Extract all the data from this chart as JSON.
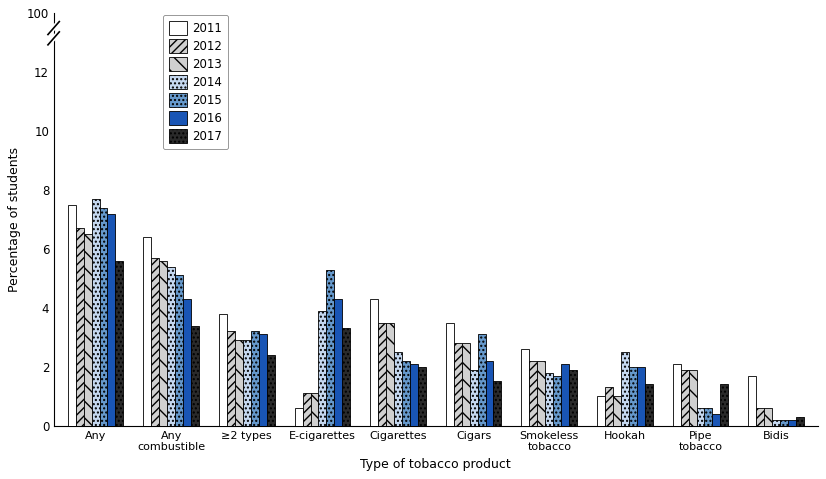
{
  "categories": [
    "Any",
    "Any\ncombustible",
    "≥2 types",
    "E-cigarettes",
    "Cigarettes",
    "Cigars",
    "Smokeless\ntobacco",
    "Hookah",
    "Pipe\ntobacco",
    "Bidis"
  ],
  "years": [
    "2011",
    "2012",
    "2013",
    "2014",
    "2015",
    "2016",
    "2017"
  ],
  "values": [
    [
      7.5,
      6.4,
      3.8,
      0.6,
      4.3,
      3.5,
      2.6,
      1.0,
      2.1,
      1.7
    ],
    [
      6.7,
      5.7,
      3.2,
      1.1,
      3.5,
      2.8,
      2.2,
      1.3,
      1.9,
      0.6
    ],
    [
      6.5,
      5.6,
      2.9,
      1.1,
      3.5,
      2.8,
      2.2,
      1.0,
      1.9,
      0.6
    ],
    [
      7.7,
      5.4,
      2.9,
      3.9,
      2.5,
      1.9,
      1.8,
      2.5,
      0.6,
      0.2
    ],
    [
      7.4,
      5.1,
      3.2,
      5.3,
      2.2,
      3.1,
      1.7,
      2.0,
      0.6,
      0.2
    ],
    [
      7.2,
      4.3,
      3.1,
      4.3,
      2.1,
      2.2,
      2.1,
      2.0,
      0.4,
      0.2
    ],
    [
      5.6,
      3.4,
      2.4,
      3.3,
      2.0,
      1.5,
      1.9,
      1.4,
      1.4,
      0.3
    ]
  ],
  "bar_colors": [
    "#ffffff",
    "#d0d0d0",
    "#d0d0d0",
    "#c5d8f0",
    "#6699cc",
    "#1955b5",
    "#2a2a2a"
  ],
  "bar_hatches": [
    "",
    "////",
    "\\\\",
    "....",
    "....",
    "",
    "...."
  ],
  "bar_edgecolors": [
    "#000000",
    "#000000",
    "#000000",
    "#000000",
    "#000000",
    "#000000",
    "#000000"
  ],
  "hatch_colors": [
    "#000000",
    "#000000",
    "#000000",
    "#5588cc",
    "#1144aa",
    "#000000",
    "#000000"
  ],
  "ylabel": "Percentage of students",
  "xlabel": "Type of tobacco product",
  "ylim": [
    0,
    14
  ],
  "yticks": [
    0,
    2,
    4,
    6,
    8,
    10,
    12,
    14
  ],
  "ytick_labels": [
    "0",
    "2",
    "4",
    "6",
    "8",
    "10",
    "12",
    "100"
  ],
  "legend_styles": [
    {
      "year": "2011",
      "color": "#ffffff",
      "hatch": "",
      "ec": "#000000"
    },
    {
      "year": "2012",
      "color": "#d0d0d0",
      "hatch": "////",
      "ec": "#000000"
    },
    {
      "year": "2013",
      "color": "#d0d0d0",
      "hatch": "\\\\",
      "ec": "#000000"
    },
    {
      "year": "2014",
      "color": "#c5d8f0",
      "hatch": "....",
      "ec": "#000000"
    },
    {
      "year": "2015",
      "color": "#6699cc",
      "hatch": "....",
      "ec": "#000000"
    },
    {
      "year": "2016",
      "color": "#1955b5",
      "hatch": "",
      "ec": "#000000"
    },
    {
      "year": "2017",
      "color": "#2a2a2a",
      "hatch": "....",
      "ec": "#000000"
    }
  ]
}
